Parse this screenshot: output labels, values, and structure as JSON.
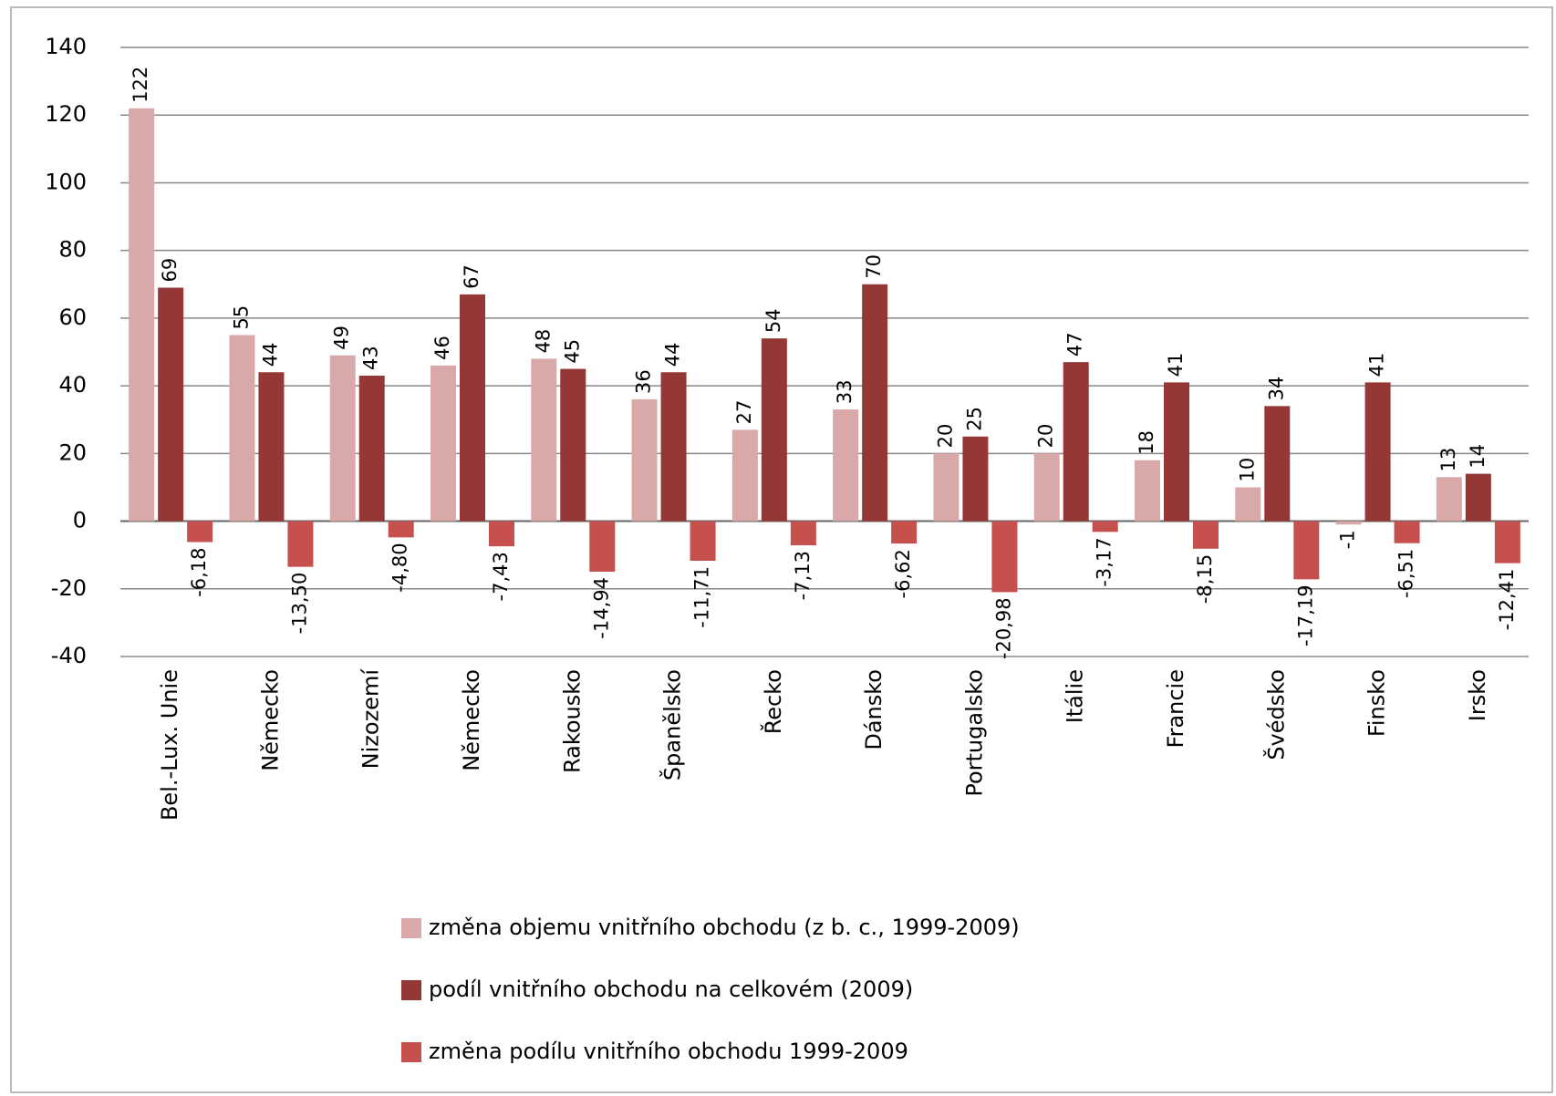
{
  "chart_data": {
    "type": "bar",
    "categories": [
      "Bel.-Lux. Unie",
      "Německo",
      "Nizozemí",
      "Německo",
      "Rakousko",
      "Španělsko",
      "Řecko",
      "Dánsko",
      "Portugalsko",
      "Itálie",
      "Francie",
      "Švédsko",
      "Finsko",
      "Irsko"
    ],
    "series": [
      {
        "name": "změna objemu vnitřního obchodu (z b. c., 1999-2009)",
        "color": "#d9a9a9",
        "values": [
          122,
          55,
          49,
          46,
          48,
          36,
          27,
          33,
          20,
          20,
          18,
          10,
          -1,
          13
        ]
      },
      {
        "name": "podíl vnitřního obchodu na celkovém (2009)",
        "color": "#953735",
        "values": [
          69,
          44,
          43,
          67,
          45,
          44,
          54,
          70,
          25,
          47,
          41,
          34,
          41,
          14
        ]
      },
      {
        "name": "změna podílu vnitřního obchodu 1999-2009",
        "color": "#c6504e",
        "values": [
          -6.18,
          -13.5,
          -4.8,
          -7.43,
          -14.94,
          -11.71,
          -7.13,
          -6.62,
          -20.98,
          -3.17,
          -8.15,
          -17.19,
          -6.51,
          -12.41
        ],
        "value_labels": [
          "-6,18",
          "-13,50",
          "-4,80",
          "-7,43",
          "-14,94",
          "-11,71",
          "-7,13",
          "-6,62",
          "-20,98",
          "-3,17",
          "-8,15",
          "-17,19",
          "-6,51",
          "-12,41"
        ]
      }
    ],
    "ylim": [
      -40,
      140
    ],
    "yticks": [
      -40,
      -20,
      0,
      20,
      40,
      60,
      80,
      100,
      120,
      140
    ],
    "grid": true,
    "legend": "bottom"
  }
}
